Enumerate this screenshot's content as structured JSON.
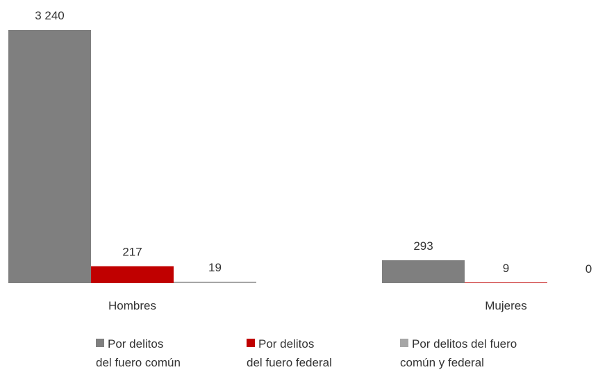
{
  "chart_data": {
    "type": "bar",
    "categories": [
      "Hombres",
      "Mujeres"
    ],
    "series": [
      {
        "name": "Por delitos del fuero común",
        "legend_lines": [
          "Por delitos",
          "del fuero común"
        ],
        "color": "#7f7f7f",
        "values": [
          3240,
          293
        ],
        "labels": [
          "3 240",
          "293"
        ]
      },
      {
        "name": "Por delitos del fuero federal",
        "legend_lines": [
          "Por delitos",
          "del fuero federal"
        ],
        "color": "#c00000",
        "values": [
          217,
          9
        ],
        "labels": [
          "217",
          "9"
        ]
      },
      {
        "name": "Por delitos del fuero común y federal",
        "legend_lines": [
          "Por delitos del fuero",
          "común y federal"
        ],
        "color": "#a6a6a6",
        "values": [
          19,
          0
        ],
        "labels": [
          "19",
          "0"
        ]
      }
    ],
    "grid": false,
    "legend_position": "bottom"
  }
}
